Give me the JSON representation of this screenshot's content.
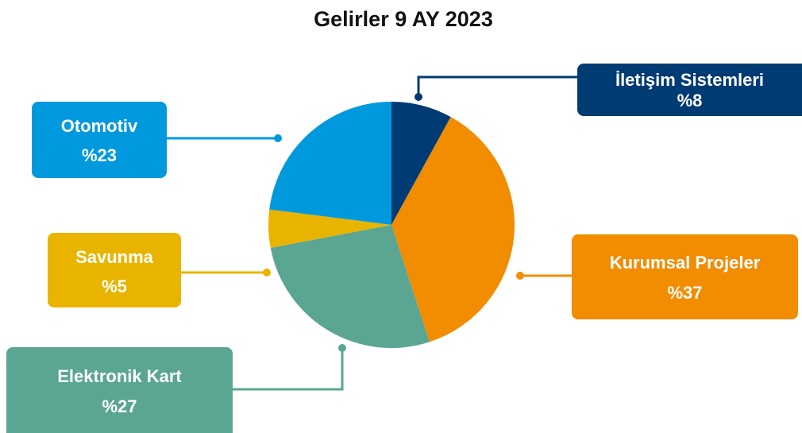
{
  "chart_data": {
    "type": "pie",
    "title": "Gelirler 9 AY 2023",
    "categories": [
      "İletişim Sistemleri",
      "Kurumsal Projeler",
      "Elektronik Kart",
      "Savunma",
      "Otomotiv"
    ],
    "values": [
      8,
      37,
      27,
      5,
      23
    ],
    "value_labels": [
      "%8",
      "%37",
      "%27",
      "%5",
      "%23"
    ],
    "colors": [
      "#003b73",
      "#f28c00",
      "#5ba593",
      "#e8b400",
      "#0099dd"
    ]
  }
}
